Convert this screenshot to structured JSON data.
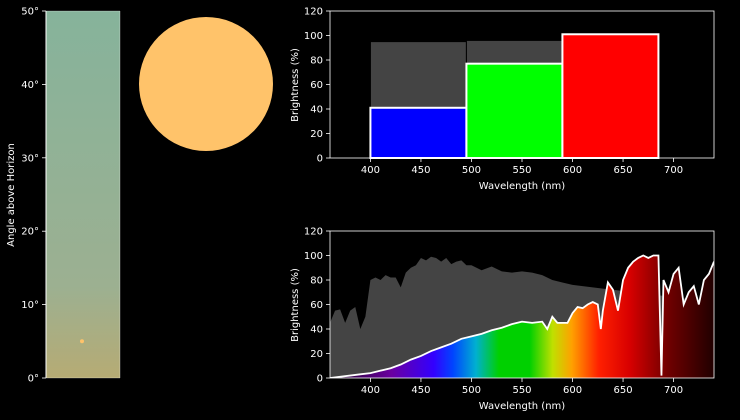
{
  "chart_data": [
    {
      "type": "bar",
      "subplot": "sky-strip",
      "ylabel": "Angle above Horizon",
      "ylim": [
        0,
        50
      ],
      "yticks": [
        "0°",
        "10°",
        "20°",
        "30°",
        "40°",
        "50°"
      ],
      "ytick_values": [
        0,
        10,
        20,
        30,
        40,
        50
      ],
      "sun_angle_deg": 5,
      "colors": {
        "sky_top": "#86b39b",
        "sky_bottom": "#b6ab74",
        "sun": "#ffc36a"
      }
    },
    {
      "type": "scatter",
      "subplot": "sun-disc",
      "colors": {
        "disc": "#ffc36a"
      }
    },
    {
      "type": "bar",
      "subplot": "rgb-brightness",
      "xlabel": "Wavelength (nm)",
      "ylabel": "Brightness (%)",
      "xlim": [
        360,
        740
      ],
      "ylim": [
        0,
        120
      ],
      "xticks": [
        400,
        450,
        500,
        550,
        600,
        650,
        700
      ],
      "yticks": [
        0,
        20,
        40,
        60,
        80,
        100,
        120
      ],
      "bars": [
        {
          "name": "blue",
          "x_start": 400,
          "x_end": 495,
          "reference": 95,
          "value": 41,
          "color": "#0000ff"
        },
        {
          "name": "green",
          "x_start": 495,
          "x_end": 590,
          "reference": 96,
          "value": 77,
          "color": "#00ff00"
        },
        {
          "name": "red",
          "x_start": 590,
          "x_end": 685,
          "reference": 101,
          "value": 101,
          "color": "#ff0000"
        }
      ],
      "reference_color": "#444444"
    },
    {
      "type": "area",
      "subplot": "spectrum",
      "xlabel": "Wavelength (nm)",
      "ylabel": "Brightness (%)",
      "xlim": [
        360,
        740
      ],
      "ylim": [
        0,
        120
      ],
      "xticks": [
        400,
        450,
        500,
        550,
        600,
        650,
        700
      ],
      "yticks": [
        0,
        20,
        40,
        60,
        80,
        100,
        120
      ],
      "reference": {
        "x": [
          360,
          365,
          370,
          375,
          380,
          385,
          390,
          395,
          400,
          405,
          410,
          415,
          420,
          425,
          430,
          435,
          440,
          445,
          450,
          455,
          460,
          465,
          470,
          475,
          480,
          485,
          490,
          495,
          500,
          510,
          520,
          530,
          540,
          550,
          560,
          570,
          580,
          590,
          600,
          610,
          620,
          630,
          640,
          650,
          660,
          670,
          680,
          690,
          700,
          710,
          720,
          730,
          740
        ],
        "y": [
          45,
          55,
          56,
          45,
          55,
          58,
          40,
          50,
          80,
          82,
          80,
          84,
          82,
          82,
          74,
          86,
          90,
          92,
          98,
          96,
          99,
          98,
          95,
          98,
          93,
          95,
          96,
          92,
          92,
          88,
          91,
          87,
          86,
          87,
          86,
          84,
          80,
          78,
          76,
          75,
          74,
          73,
          72,
          71,
          70,
          69,
          68,
          67,
          66,
          65,
          64,
          63,
          62
        ]
      },
      "measured": {
        "x": [
          360,
          370,
          380,
          390,
          400,
          410,
          420,
          430,
          440,
          450,
          460,
          470,
          480,
          490,
          500,
          510,
          520,
          530,
          540,
          550,
          560,
          570,
          575,
          580,
          585,
          590,
          595,
          600,
          605,
          610,
          615,
          620,
          625,
          628,
          630,
          635,
          640,
          645,
          650,
          655,
          660,
          665,
          670,
          675,
          680,
          685,
          688,
          690,
          695,
          700,
          705,
          710,
          715,
          720,
          725,
          730,
          735,
          740
        ],
        "y": [
          0,
          1,
          2,
          3,
          4,
          6,
          8,
          11,
          15,
          18,
          22,
          25,
          28,
          32,
          34,
          36,
          39,
          41,
          44,
          46,
          45,
          46,
          40,
          50,
          45,
          45,
          45,
          53,
          58,
          57,
          60,
          62,
          60,
          40,
          55,
          78,
          72,
          55,
          80,
          90,
          95,
          98,
          100,
          98,
          100,
          100,
          2,
          80,
          70,
          85,
          90,
          60,
          70,
          75,
          60,
          80,
          85,
          95
        ]
      },
      "colors": {
        "reference": "#444444",
        "curve": "#ffffff"
      }
    }
  ]
}
